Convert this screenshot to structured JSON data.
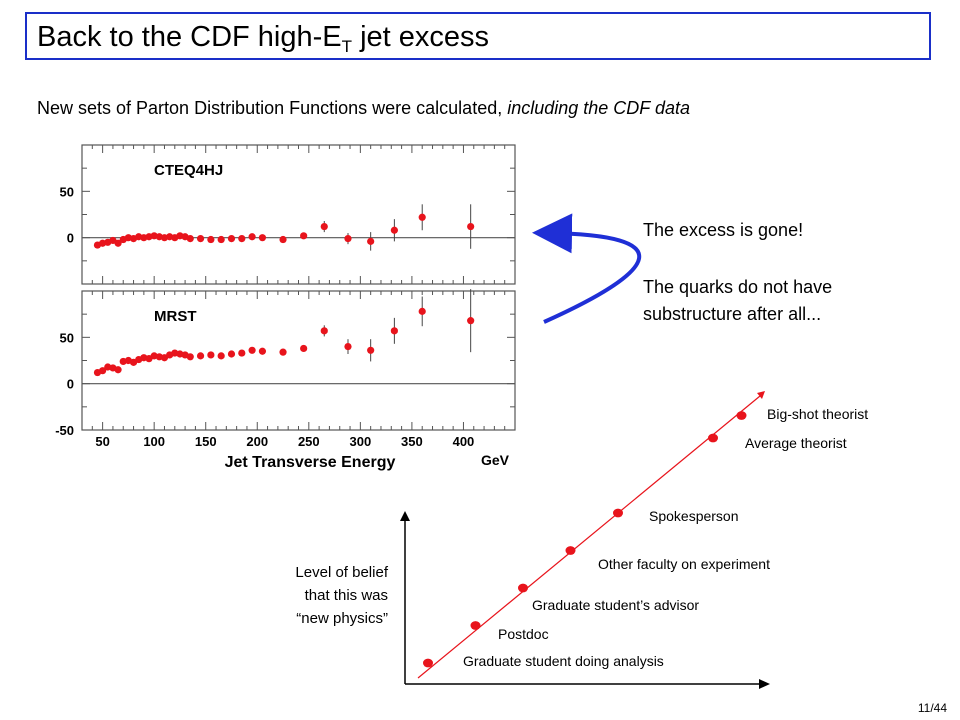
{
  "slide": {
    "title_main": "Back to the CDF high-E",
    "title_sub": "T",
    "title_end": " jet excess",
    "subtitle_main": "New sets of Parton Distribution Functions were calculated, ",
    "subtitle_italic": "including the CDF data",
    "message_1": "The excess is gone!",
    "message_2_line1": "The quarks do not have",
    "message_2_line2": "substructure after all...",
    "page_number": "11/44"
  },
  "colors": {
    "title_border": "#1a2fc8",
    "arrow": "#1f2fd6",
    "points": "#e8141c"
  },
  "chart_data": [
    {
      "type": "scatter",
      "title": "CTEQ4HJ",
      "xlabel": "Jet Transverse Energy",
      "x_unit": "GeV",
      "xlim": [
        30,
        450
      ],
      "ylim": [
        -50,
        100
      ],
      "yticks": [
        50,
        0
      ],
      "xticks": [
        50,
        100,
        150,
        200,
        250,
        300,
        350,
        400
      ],
      "points": [
        {
          "x": 45,
          "y": -8
        },
        {
          "x": 50,
          "y": -6
        },
        {
          "x": 55,
          "y": -5
        },
        {
          "x": 60,
          "y": -3
        },
        {
          "x": 65,
          "y": -6
        },
        {
          "x": 70,
          "y": -2
        },
        {
          "x": 75,
          "y": 0
        },
        {
          "x": 80,
          "y": -1
        },
        {
          "x": 85,
          "y": 1
        },
        {
          "x": 90,
          "y": 0
        },
        {
          "x": 95,
          "y": 1
        },
        {
          "x": 100,
          "y": 2
        },
        {
          "x": 105,
          "y": 1
        },
        {
          "x": 110,
          "y": 0
        },
        {
          "x": 115,
          "y": 1
        },
        {
          "x": 120,
          "y": 0
        },
        {
          "x": 125,
          "y": 2
        },
        {
          "x": 130,
          "y": 1
        },
        {
          "x": 135,
          "y": -1
        },
        {
          "x": 145,
          "y": -1
        },
        {
          "x": 155,
          "y": -2
        },
        {
          "x": 165,
          "y": -2
        },
        {
          "x": 175,
          "y": -1
        },
        {
          "x": 185,
          "y": -1
        },
        {
          "x": 195,
          "y": 1
        },
        {
          "x": 205,
          "y": 0
        },
        {
          "x": 225,
          "y": -2
        },
        {
          "x": 245,
          "y": 2
        },
        {
          "x": 265,
          "y": 12,
          "err": 6
        },
        {
          "x": 288,
          "y": -1,
          "err": 6
        },
        {
          "x": 310,
          "y": -4,
          "err": 10
        },
        {
          "x": 333,
          "y": 8,
          "err": 12
        },
        {
          "x": 360,
          "y": 22,
          "err": 14
        },
        {
          "x": 407,
          "y": 12,
          "err": 24
        }
      ]
    },
    {
      "type": "scatter",
      "title": "MRST",
      "xlabel": "Jet Transverse Energy",
      "x_unit": "GeV",
      "xlim": [
        30,
        450
      ],
      "ylim": [
        -50,
        100
      ],
      "yticks": [
        50,
        0,
        -50
      ],
      "xticks": [
        50,
        100,
        150,
        200,
        250,
        300,
        350,
        400
      ],
      "points": [
        {
          "x": 45,
          "y": 12
        },
        {
          "x": 50,
          "y": 14
        },
        {
          "x": 55,
          "y": 18
        },
        {
          "x": 60,
          "y": 17
        },
        {
          "x": 65,
          "y": 15
        },
        {
          "x": 70,
          "y": 24
        },
        {
          "x": 75,
          "y": 25
        },
        {
          "x": 80,
          "y": 23
        },
        {
          "x": 85,
          "y": 26
        },
        {
          "x": 90,
          "y": 28
        },
        {
          "x": 95,
          "y": 27
        },
        {
          "x": 100,
          "y": 30
        },
        {
          "x": 105,
          "y": 29
        },
        {
          "x": 110,
          "y": 28
        },
        {
          "x": 115,
          "y": 31
        },
        {
          "x": 120,
          "y": 33
        },
        {
          "x": 125,
          "y": 32
        },
        {
          "x": 130,
          "y": 31
        },
        {
          "x": 135,
          "y": 29
        },
        {
          "x": 145,
          "y": 30
        },
        {
          "x": 155,
          "y": 31
        },
        {
          "x": 165,
          "y": 30
        },
        {
          "x": 175,
          "y": 32
        },
        {
          "x": 185,
          "y": 33
        },
        {
          "x": 195,
          "y": 36
        },
        {
          "x": 205,
          "y": 35
        },
        {
          "x": 225,
          "y": 34
        },
        {
          "x": 245,
          "y": 38
        },
        {
          "x": 265,
          "y": 57,
          "err": 6
        },
        {
          "x": 288,
          "y": 40,
          "err": 8
        },
        {
          "x": 310,
          "y": 36,
          "err": 12
        },
        {
          "x": 333,
          "y": 57,
          "err": 14
        },
        {
          "x": 360,
          "y": 78,
          "err": 16
        },
        {
          "x": 407,
          "y": 68,
          "err": 34
        }
      ]
    },
    {
      "type": "scatter",
      "ylabel_lines": [
        "Level of belief",
        "that this was",
        "“new physics”"
      ],
      "points": [
        {
          "x": 1,
          "y": 1,
          "label": "Graduate student doing analysis"
        },
        {
          "x": 2,
          "y": 2,
          "label": "Postdoc"
        },
        {
          "x": 3,
          "y": 3,
          "label": "Graduate student’s advisor"
        },
        {
          "x": 4,
          "y": 4,
          "label": "Other faculty on experiment"
        },
        {
          "x": 5,
          "y": 5,
          "label": "Spokesperson"
        },
        {
          "x": 7,
          "y": 7,
          "label": "Average theorist"
        },
        {
          "x": 7.6,
          "y": 7.6,
          "label": "Big-shot theorist"
        }
      ]
    }
  ]
}
